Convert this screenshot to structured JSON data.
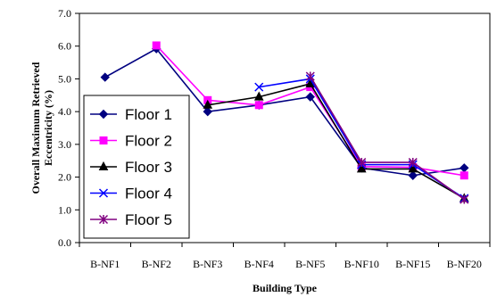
{
  "chart_data": {
    "type": "line",
    "title": "",
    "xlabel": "Building Type",
    "ylabel": "Overall Maximum Retrieved Eccentricity (%)",
    "categories": [
      "B-NF1",
      "B-NF2",
      "B-NF3",
      "B-NF4",
      "B-NF5",
      "B-NF10",
      "B-NF15",
      "B-NF20"
    ],
    "ylim": [
      0,
      7
    ],
    "yticks": [
      "0.0",
      "1.0",
      "2.0",
      "3.0",
      "4.0",
      "5.0",
      "6.0",
      "7.0"
    ],
    "grid": false,
    "legend_position": "left-center",
    "series": [
      {
        "name": "Floor 1",
        "color": "#000080",
        "marker": "diamond",
        "values": [
          5.05,
          5.92,
          4.0,
          4.2,
          4.45,
          2.28,
          2.05,
          2.28
        ]
      },
      {
        "name": "Floor 2",
        "color": "#FF00FF",
        "marker": "square",
        "values": [
          null,
          6.02,
          4.35,
          4.2,
          4.75,
          2.32,
          2.3,
          2.05
        ]
      },
      {
        "name": "Floor 3",
        "color": "#000000",
        "marker": "triangle",
        "values": [
          null,
          null,
          4.2,
          4.45,
          4.85,
          2.25,
          2.25,
          1.35
        ]
      },
      {
        "name": "Floor 4",
        "color": "#0000FF",
        "marker": "x",
        "values": [
          null,
          null,
          null,
          4.75,
          5.0,
          2.38,
          2.38,
          1.35
        ]
      },
      {
        "name": "Floor 5",
        "color": "#800080",
        "marker": "asterisk",
        "values": [
          null,
          null,
          null,
          null,
          5.08,
          2.45,
          2.45,
          1.32
        ]
      }
    ]
  }
}
